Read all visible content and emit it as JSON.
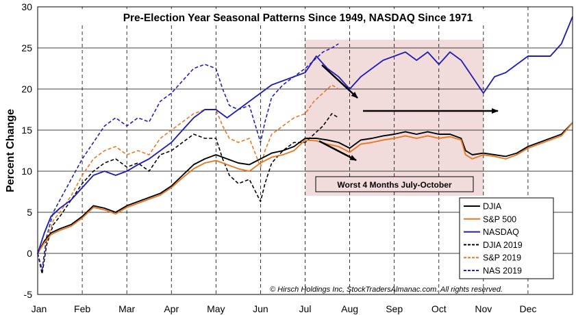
{
  "chart_data": {
    "type": "line",
    "title": "Pre-Election Year Seasonal Patterns Since 1949, NASDAQ Since 1971",
    "ylabel": "Percent Change",
    "xlabel": "",
    "ylim": [
      -5,
      30
    ],
    "yticks": [
      -5,
      0,
      5,
      10,
      15,
      20,
      25,
      30
    ],
    "xlim": [
      0,
      12
    ],
    "months": [
      "Jan",
      "Feb",
      "Mar",
      "Apr",
      "May",
      "Jun",
      "Jul",
      "Aug",
      "Sep",
      "Oct",
      "Nov",
      "Dec"
    ],
    "highlight": {
      "label": "Worst 4 Months July-October",
      "x0": 6.0,
      "x1": 10.0,
      "y0": 7,
      "y1": 26,
      "color": "#f2dcdb"
    },
    "copyright": "© Hirsch Holdings Inc, StockTradersAlmanac.com. All rights reserved.",
    "colors": {
      "djia": "#000000",
      "sp500": "#e87722",
      "nasdaq": "#1f1fb4"
    },
    "series": [
      {
        "name": "DJIA",
        "color": "#000000",
        "dash": false,
        "x": [
          0,
          0.15,
          0.3,
          0.5,
          0.75,
          1.0,
          1.25,
          1.5,
          1.75,
          2.0,
          2.25,
          2.5,
          2.75,
          3.0,
          3.25,
          3.5,
          3.75,
          4.0,
          4.25,
          4.5,
          4.75,
          5.0,
          5.25,
          5.5,
          5.75,
          6.0,
          6.25,
          6.5,
          6.75,
          7.0,
          7.25,
          7.5,
          7.75,
          8.0,
          8.25,
          8.5,
          8.75,
          9.0,
          9.25,
          9.5,
          9.6,
          9.75,
          10.0,
          10.25,
          10.5,
          10.75,
          11.0,
          11.25,
          11.5,
          11.75,
          12.0
        ],
        "y": [
          0,
          1.5,
          2.5,
          3.0,
          3.5,
          4.5,
          5.8,
          5.5,
          5.0,
          5.8,
          6.3,
          6.8,
          7.3,
          8.2,
          9.5,
          10.8,
          11.5,
          12.0,
          11.5,
          11.0,
          10.8,
          11.5,
          12.2,
          12.5,
          13.0,
          14.0,
          14.0,
          13.8,
          13.5,
          12.8,
          13.8,
          14.0,
          14.3,
          14.5,
          14.8,
          14.5,
          14.8,
          14.5,
          14.5,
          14.0,
          12.5,
          12.0,
          12.2,
          12.0,
          11.8,
          12.2,
          13.0,
          13.5,
          14.0,
          14.5,
          15.9
        ]
      },
      {
        "name": "S&P 500",
        "color": "#e87722",
        "dash": false,
        "x": [
          0,
          0.15,
          0.3,
          0.5,
          0.75,
          1.0,
          1.25,
          1.5,
          1.75,
          2.0,
          2.25,
          2.5,
          2.75,
          3.0,
          3.25,
          3.5,
          3.75,
          4.0,
          4.25,
          4.5,
          4.75,
          5.0,
          5.25,
          5.5,
          5.75,
          6.0,
          6.25,
          6.5,
          6.75,
          7.0,
          7.25,
          7.5,
          7.75,
          8.0,
          8.25,
          8.5,
          8.75,
          9.0,
          9.25,
          9.5,
          9.6,
          9.75,
          10.0,
          10.25,
          10.5,
          10.75,
          11.0,
          11.25,
          11.5,
          11.75,
          12.0
        ],
        "y": [
          0,
          1.3,
          2.3,
          2.8,
          3.3,
          4.3,
          5.6,
          5.3,
          4.8,
          5.6,
          6.1,
          6.6,
          7.1,
          8.0,
          9.2,
          10.3,
          11.0,
          11.3,
          10.8,
          10.3,
          10.0,
          11.0,
          11.7,
          12.0,
          12.5,
          13.8,
          13.7,
          13.3,
          13.0,
          12.3,
          13.3,
          13.5,
          13.8,
          14.0,
          14.3,
          14.0,
          14.3,
          14.0,
          14.2,
          13.8,
          12.0,
          11.5,
          12.0,
          11.8,
          11.5,
          12.0,
          12.8,
          13.3,
          13.8,
          14.3,
          15.9
        ]
      },
      {
        "name": "NASDAQ",
        "color": "#1f1fb4",
        "dash": false,
        "x": [
          0,
          0.15,
          0.3,
          0.5,
          0.75,
          1.0,
          1.25,
          1.5,
          1.75,
          2.0,
          2.25,
          2.5,
          2.75,
          3.0,
          3.25,
          3.5,
          3.75,
          4.0,
          4.25,
          4.5,
          4.75,
          5.0,
          5.25,
          5.5,
          5.75,
          6.0,
          6.25,
          6.5,
          6.75,
          7.0,
          7.25,
          7.5,
          7.75,
          8.0,
          8.25,
          8.5,
          8.75,
          9.0,
          9.25,
          9.5,
          9.75,
          10.0,
          10.25,
          10.5,
          10.75,
          11.0,
          11.25,
          11.5,
          11.75,
          12.0
        ],
        "y": [
          0,
          2.5,
          4.5,
          5.5,
          6.5,
          8.0,
          9.5,
          10.0,
          9.5,
          10.0,
          10.8,
          11.5,
          12.5,
          13.5,
          15.0,
          16.5,
          17.5,
          17.5,
          16.5,
          17.5,
          18.5,
          19.5,
          20.5,
          21.0,
          21.5,
          22.0,
          24.0,
          22.5,
          21.5,
          20.0,
          21.5,
          22.5,
          23.5,
          24.0,
          24.5,
          23.5,
          24.5,
          23.0,
          24.5,
          23.5,
          21.5,
          19.5,
          21.5,
          22.0,
          23.0,
          24.0,
          24.0,
          24.0,
          25.5,
          28.8
        ]
      },
      {
        "name": "DJIA 2019",
        "color": "#000000",
        "dash": true,
        "x": [
          0,
          0.1,
          0.2,
          0.35,
          0.5,
          0.75,
          1.0,
          1.25,
          1.5,
          1.75,
          2.0,
          2.25,
          2.5,
          2.75,
          3.0,
          3.25,
          3.5,
          3.75,
          4.0,
          4.15,
          4.3,
          4.5,
          4.75,
          5.0,
          5.1,
          5.25,
          5.5,
          5.75,
          6.0,
          6.2,
          6.4,
          6.6,
          6.75
        ],
        "y": [
          0,
          -2.5,
          1.0,
          3.5,
          4.5,
          6.5,
          8.5,
          10.0,
          11.0,
          11.5,
          10.5,
          11.0,
          10.0,
          12.0,
          12.5,
          13.5,
          14.5,
          14.0,
          14.0,
          11.5,
          9.5,
          8.5,
          9.0,
          6.3,
          8.5,
          11.0,
          12.5,
          13.5,
          13.5,
          14.5,
          15.5,
          17.0,
          16.5
        ]
      },
      {
        "name": "S&P 2019",
        "color": "#e87722",
        "dash": true,
        "x": [
          0,
          0.1,
          0.2,
          0.35,
          0.5,
          0.75,
          1.0,
          1.25,
          1.5,
          1.75,
          2.0,
          2.25,
          2.5,
          2.75,
          3.0,
          3.25,
          3.5,
          3.75,
          4.0,
          4.15,
          4.3,
          4.5,
          4.75,
          5.0,
          5.1,
          5.25,
          5.5,
          5.75,
          6.0,
          6.2,
          6.4,
          6.6,
          6.75
        ],
        "y": [
          0,
          -2.0,
          1.5,
          4.0,
          5.0,
          7.0,
          9.5,
          11.5,
          12.5,
          13.0,
          12.0,
          12.5,
          12.0,
          14.0,
          15.0,
          16.0,
          17.0,
          17.5,
          17.5,
          15.5,
          14.0,
          13.5,
          14.0,
          10.5,
          12.5,
          14.5,
          15.5,
          16.5,
          17.0,
          18.5,
          19.5,
          20.5,
          20.0
        ]
      },
      {
        "name": "NAS 2019",
        "color": "#1f1fb4",
        "dash": true,
        "x": [
          0,
          0.1,
          0.2,
          0.35,
          0.5,
          0.75,
          1.0,
          1.25,
          1.5,
          1.75,
          2.0,
          2.25,
          2.5,
          2.75,
          3.0,
          3.25,
          3.5,
          3.75,
          4.0,
          4.15,
          4.3,
          4.5,
          4.75,
          5.0,
          5.1,
          5.25,
          5.5,
          5.75,
          6.0,
          6.2,
          6.4,
          6.6,
          6.75
        ],
        "y": [
          0,
          -2.0,
          2.0,
          5.0,
          6.5,
          9.0,
          11.5,
          13.5,
          15.5,
          16.5,
          15.5,
          16.5,
          16.0,
          18.5,
          19.5,
          21.0,
          22.5,
          23.0,
          22.5,
          20.0,
          18.0,
          17.5,
          18.0,
          13.5,
          16.0,
          19.0,
          20.5,
          21.5,
          22.5,
          23.5,
          24.5,
          25.0,
          25.5
        ]
      }
    ]
  }
}
